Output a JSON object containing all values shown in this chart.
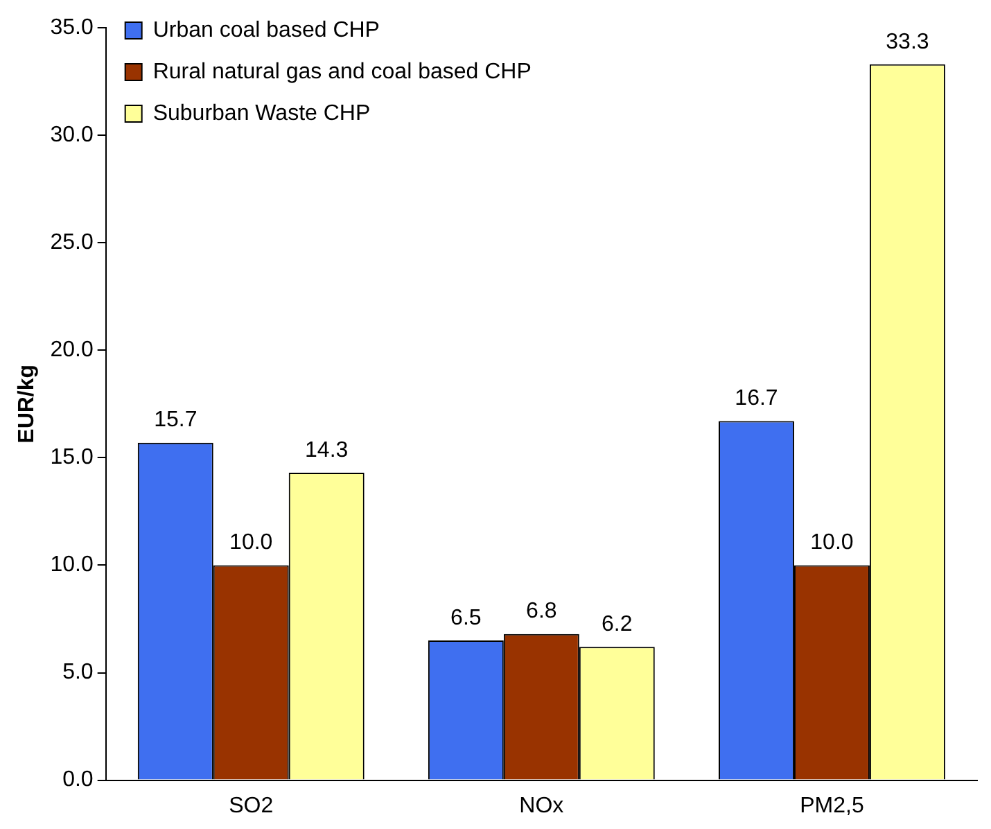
{
  "chart_data": {
    "type": "bar",
    "ylabel": "EUR/kg",
    "categories": [
      "SO2",
      "NOx",
      "PM2,5"
    ],
    "series": [
      {
        "name": "Urban coal based CHP",
        "color": "#3f6ff0",
        "values": [
          15.7,
          6.5,
          16.7
        ],
        "value_labels": [
          "15.7",
          "6.5",
          "16.7"
        ]
      },
      {
        "name": "Rural natural gas and coal based CHP",
        "color": "#993300",
        "values": [
          10.0,
          6.8,
          10.0
        ],
        "value_labels": [
          "10.0",
          "6.8",
          "10.0"
        ]
      },
      {
        "name": "Suburban Waste CHP",
        "color": "#ffff99",
        "values": [
          14.3,
          6.2,
          33.3
        ],
        "value_labels": [
          "14.3",
          "6.2",
          "33.3"
        ]
      }
    ],
    "ylim": [
      0,
      35
    ],
    "yticks": [
      {
        "value": 0,
        "label": "0.0"
      },
      {
        "value": 5,
        "label": "5.0"
      },
      {
        "value": 10,
        "label": "10.0"
      },
      {
        "value": 15,
        "label": "15.0"
      },
      {
        "value": 20,
        "label": "20.0"
      },
      {
        "value": 25,
        "label": "25.0"
      },
      {
        "value": 30,
        "label": "30.0"
      },
      {
        "value": 35,
        "label": "35.0"
      }
    ],
    "grid": false,
    "legend": "top left"
  }
}
